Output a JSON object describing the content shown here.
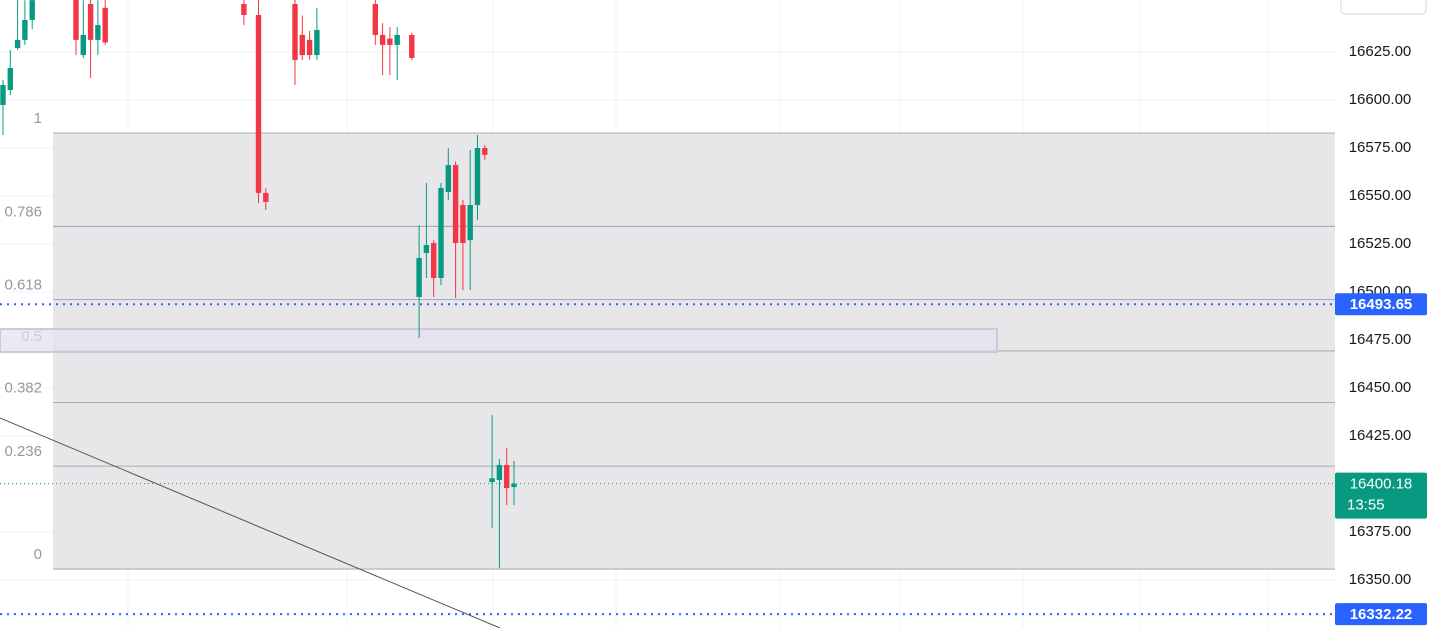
{
  "chart_data": {
    "type": "candlestick",
    "up_color": "#089981",
    "down_color": "#f23645",
    "categories": [
      null,
      null,
      null,
      null,
      null,
      null,
      null,
      null,
      null,
      null,
      null,
      null,
      null,
      null,
      null,
      null,
      null,
      null,
      null,
      null,
      null,
      null,
      null,
      null,
      null,
      null,
      null,
      null,
      null,
      null,
      null,
      null,
      null,
      null,
      null,
      null,
      null,
      null,
      null,
      null,
      null,
      null,
      null,
      null,
      null,
      null,
      null,
      null,
      null,
      null,
      null,
      null,
      null,
      null,
      null,
      null,
      null,
      null,
      null,
      null,
      null,
      null,
      null,
      null,
      null,
      null,
      null,
      null,
      null,
      null,
      null
    ],
    "open": [
      16597.4,
      16605.2,
      16627.1,
      16631.3,
      16641.7,
      null,
      null,
      null,
      null,
      null,
      16655,
      16623.4,
      16650,
      16631.3,
      16648,
      null,
      null,
      null,
      null,
      null,
      null,
      null,
      null,
      null,
      null,
      null,
      null,
      null,
      null,
      null,
      null,
      null,
      null,
      16650,
      null,
      16644.3,
      16551.6,
      null,
      null,
      null,
      16650,
      16633.9,
      16631.3,
      16623.4,
      null,
      null,
      null,
      null,
      null,
      null,
      null,
      16650,
      16633.9,
      16632,
      16628.7,
      null,
      16633.9,
      16497.4,
      16520.3,
      16525.5,
      16507.3,
      16552.1,
      16566.1,
      16545.3,
      16527,
      16545.3,
      16575,
      16401,
      16402.1,
      16409.9,
      16398.4
    ],
    "high": [
      16610.4,
      16626,
      16652,
      16652,
      16652,
      null,
      null,
      null,
      null,
      null,
      16660,
      16652,
      16655,
      16652,
      16655,
      null,
      null,
      null,
      null,
      null,
      null,
      null,
      null,
      null,
      null,
      null,
      null,
      null,
      null,
      null,
      null,
      null,
      null,
      16655,
      null,
      16652,
      16554,
      null,
      null,
      null,
      16655,
      16644,
      16636,
      16648,
      null,
      null,
      null,
      null,
      null,
      null,
      null,
      16655,
      16640,
      16638,
      16638,
      null,
      16635,
      16534.9,
      16556.8,
      16527,
      16556.8,
      16575,
      16568,
      16548,
      16574,
      16581.8,
      16576.6,
      16435.9,
      16413,
      16418.7,
      16412
    ],
    "low": [
      16581.8,
      16602.6,
      16626,
      16628.7,
      16637,
      null,
      null,
      null,
      null,
      null,
      16623.4,
      16622,
      16611.5,
      16623.4,
      16628.7,
      null,
      null,
      null,
      null,
      null,
      null,
      null,
      null,
      null,
      null,
      null,
      null,
      null,
      null,
      null,
      null,
      null,
      null,
      16639,
      null,
      16546.3,
      16542.7,
      null,
      null,
      null,
      16607.8,
      16620.8,
      16621,
      16621,
      null,
      null,
      null,
      null,
      null,
      null,
      null,
      16628.7,
      16613,
      16613,
      16610.4,
      null,
      16620.8,
      16476.1,
      16507.3,
      16497.4,
      16503.6,
      16547.9,
      16496.9,
      16501,
      16501,
      16537.5,
      16568.8,
      16377.1,
      16356.3,
      16389,
      16389
    ],
    "close": [
      16607.8,
      16616.7,
      16631.3,
      16641.7,
      16652,
      null,
      null,
      null,
      null,
      null,
      16631.3,
      16633.9,
      16631.3,
      16639,
      16630,
      null,
      null,
      null,
      null,
      null,
      null,
      null,
      null,
      null,
      null,
      null,
      null,
      null,
      null,
      null,
      null,
      null,
      null,
      16644.3,
      null,
      16551.6,
      16546.9,
      null,
      null,
      null,
      16620.8,
      16623.4,
      16623.4,
      16636.5,
      null,
      null,
      null,
      null,
      null,
      null,
      null,
      16633.9,
      16628.7,
      16628.7,
      16633.9,
      null,
      16621.9,
      16517.7,
      16524.5,
      16507.3,
      16554.2,
      16566.1,
      16525.5,
      16525.5,
      16545.3,
      16575,
      16571.4,
      16403,
      16409.9,
      16397.9,
      16400.18
    ],
    "ylim": [
      16325,
      16652.08
    ],
    "yticks": [
      {
        "value": 16625,
        "label": "16625.00"
      },
      {
        "value": 16600,
        "label": "16600.00"
      },
      {
        "value": 16575,
        "label": "16575.00"
      },
      {
        "value": 16550,
        "label": "16550.00"
      },
      {
        "value": 16525,
        "label": "16525.00"
      },
      {
        "value": 16500,
        "label": "16500.00"
      },
      {
        "value": 16475,
        "label": "16475.00"
      },
      {
        "value": 16450,
        "label": "16450.00"
      },
      {
        "value": 16425,
        "label": "16425.00"
      },
      {
        "value": 16400,
        "label": "16400.00"
      },
      {
        "value": 16375,
        "label": "16375.00"
      },
      {
        "value": 16350,
        "label": "16350.00"
      }
    ],
    "fib_levels": [
      {
        "level": 1,
        "price": 16582.8
      },
      {
        "level": 0.786,
        "price": 16534.2
      },
      {
        "level": 0.618,
        "price": 16496.1
      },
      {
        "level": 0.5,
        "price": 16469.3
      },
      {
        "level": 0.382,
        "price": 16442.5
      },
      {
        "level": 0.236,
        "price": 16409.3
      },
      {
        "level": 0,
        "price": 16355.7
      }
    ],
    "price_lines": [
      {
        "value": 16493.65,
        "label": "16493.65",
        "color": "#2962ff"
      },
      {
        "value": 16332.22,
        "label": "16332.22",
        "color": "#2962ff"
      }
    ],
    "last_price": {
      "value": 16400.18,
      "label": "16400.18",
      "countdown": "13:55",
      "color": "#089981"
    }
  }
}
